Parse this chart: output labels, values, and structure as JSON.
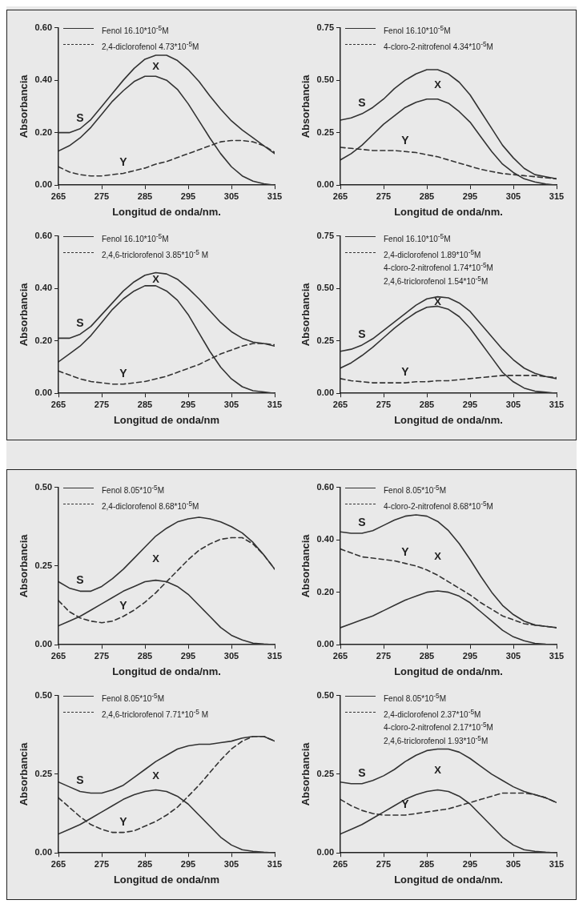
{
  "chart_data": [
    {
      "type": "line",
      "xlabel": "Longitud de onda/nm.",
      "ylabel": "Absorbancia",
      "legend": "top left",
      "marker": "none",
      "x": [
        265,
        267.5,
        270,
        272.5,
        275,
        277.5,
        280,
        282.5,
        285,
        287.5,
        290,
        292.5,
        295,
        297.5,
        300,
        302.5,
        305,
        307.5,
        310,
        312.5,
        315
      ],
      "xlim": [
        265,
        315
      ],
      "xticks": [
        265,
        275,
        285,
        295,
        305,
        315
      ],
      "ylim": [
        0,
        0.6
      ],
      "yticks": [
        {
          "value": 0,
          "label": "0.00"
        },
        {
          "value": 0.2,
          "label": "0.20"
        },
        {
          "value": 0.4,
          "label": "0.40"
        },
        {
          "value": 0.6,
          "label": "0.60"
        }
      ],
      "series": [
        {
          "color": "#333333",
          "values": [
            0.2,
            0.2,
            0.215,
            0.25,
            0.3,
            0.35,
            0.4,
            0.445,
            0.48,
            0.495,
            0.495,
            0.475,
            0.44,
            0.395,
            0.34,
            0.29,
            0.245,
            0.21,
            0.18,
            0.15,
            0.12
          ]
        },
        {
          "name": "Fenol 16.10*10$^{-5}$M",
          "color": "#333333",
          "values": [
            0.13,
            0.15,
            0.18,
            0.22,
            0.27,
            0.32,
            0.36,
            0.395,
            0.415,
            0.415,
            0.4,
            0.365,
            0.31,
            0.245,
            0.18,
            0.12,
            0.07,
            0.035,
            0.015,
            0.005,
            0
          ]
        },
        {
          "name": "2,4-diclorofenol 4.73*10$^{-5}$M",
          "color": "#333333",
          "line_style": "dashed",
          "values": [
            0.07,
            0.05,
            0.04,
            0.035,
            0.035,
            0.04,
            0.045,
            0.055,
            0.065,
            0.08,
            0.09,
            0.105,
            0.12,
            0.135,
            0.15,
            0.165,
            0.17,
            0.17,
            0.165,
            0.15,
            0.125
          ]
        }
      ],
      "annotations": [
        "S",
        "X",
        "Y"
      ]
    },
    {
      "type": "line",
      "xlabel": "Longitud de onda/nm.",
      "ylabel": "Absorbancia",
      "legend": "top left",
      "marker": "none",
      "x": [
        265,
        267.5,
        270,
        272.5,
        275,
        277.5,
        280,
        282.5,
        285,
        287.5,
        290,
        292.5,
        295,
        297.5,
        300,
        302.5,
        305,
        307.5,
        310,
        312.5,
        315
      ],
      "xlim": [
        265,
        315
      ],
      "xticks": [
        265,
        275,
        285,
        295,
        305,
        315
      ],
      "ylim": [
        0,
        0.75
      ],
      "yticks": [
        {
          "value": 0,
          "label": "0.00"
        },
        {
          "value": 0.25,
          "label": "0.25"
        },
        {
          "value": 0.5,
          "label": "0.50"
        },
        {
          "value": 0.75,
          "label": "0.75"
        }
      ],
      "series": [
        {
          "color": "#333333",
          "values": [
            0.31,
            0.32,
            0.34,
            0.37,
            0.41,
            0.46,
            0.5,
            0.53,
            0.55,
            0.55,
            0.53,
            0.49,
            0.43,
            0.35,
            0.27,
            0.19,
            0.13,
            0.08,
            0.05,
            0.04,
            0.03
          ]
        },
        {
          "name": "Fenol 16.10*10$^{-5}$M",
          "color": "#333333",
          "values": [
            0.12,
            0.15,
            0.19,
            0.24,
            0.29,
            0.33,
            0.37,
            0.395,
            0.41,
            0.41,
            0.39,
            0.35,
            0.3,
            0.23,
            0.16,
            0.1,
            0.06,
            0.03,
            0.015,
            0.005,
            0
          ]
        },
        {
          "name": "4-cloro-2-nitrofenol 4.34*10$^{-5}$M",
          "color": "#333333",
          "line_style": "dashed",
          "values": [
            0.18,
            0.175,
            0.17,
            0.165,
            0.165,
            0.165,
            0.16,
            0.155,
            0.145,
            0.135,
            0.12,
            0.105,
            0.09,
            0.075,
            0.065,
            0.055,
            0.05,
            0.045,
            0.04,
            0.035,
            0.03
          ]
        }
      ],
      "annotations": [
        "S",
        "X",
        "Y"
      ]
    },
    {
      "type": "line",
      "xlabel": "Longitud de onda/nm",
      "ylabel": "Absorbancia",
      "legend": "top left",
      "marker": "none",
      "x": [
        265,
        267.5,
        270,
        272.5,
        275,
        277.5,
        280,
        282.5,
        285,
        287.5,
        290,
        292.5,
        295,
        297.5,
        300,
        302.5,
        305,
        307.5,
        310,
        312.5,
        315
      ],
      "xlim": [
        265,
        315
      ],
      "xticks": [
        265,
        275,
        285,
        295,
        305,
        315
      ],
      "ylim": [
        0,
        0.6
      ],
      "yticks": [
        {
          "value": 0,
          "label": "0.00"
        },
        {
          "value": 0.2,
          "label": "0.20"
        },
        {
          "value": 0.4,
          "label": "0.40"
        },
        {
          "value": 0.6,
          "label": "0.60"
        }
      ],
      "series": [
        {
          "color": "#333333",
          "values": [
            0.21,
            0.21,
            0.225,
            0.255,
            0.3,
            0.345,
            0.39,
            0.425,
            0.45,
            0.46,
            0.455,
            0.435,
            0.4,
            0.36,
            0.315,
            0.27,
            0.235,
            0.21,
            0.195,
            0.19,
            0.18
          ]
        },
        {
          "name": "Fenol 16.10*10$^{-5}$M",
          "color": "#333333",
          "values": [
            0.12,
            0.15,
            0.18,
            0.22,
            0.27,
            0.32,
            0.36,
            0.39,
            0.41,
            0.41,
            0.39,
            0.355,
            0.3,
            0.23,
            0.16,
            0.1,
            0.055,
            0.025,
            0.01,
            0.005,
            0
          ]
        },
        {
          "name": "2,4,6-triclorofenol 3.85*10$^{-5}$ M",
          "color": "#333333",
          "line_style": "dashed",
          "values": [
            0.085,
            0.07,
            0.055,
            0.045,
            0.04,
            0.035,
            0.035,
            0.04,
            0.045,
            0.055,
            0.065,
            0.08,
            0.095,
            0.11,
            0.13,
            0.15,
            0.165,
            0.18,
            0.19,
            0.19,
            0.185
          ]
        }
      ],
      "annotations": [
        "S",
        "X",
        "Y"
      ]
    },
    {
      "type": "line",
      "xlabel": "Longitud de onda/nm.",
      "ylabel": "Absorbancia",
      "legend": "top left",
      "marker": "none",
      "x": [
        265,
        267.5,
        270,
        272.5,
        275,
        277.5,
        280,
        282.5,
        285,
        287.5,
        290,
        292.5,
        295,
        297.5,
        300,
        302.5,
        305,
        307.5,
        310,
        312.5,
        315
      ],
      "xlim": [
        265,
        315
      ],
      "xticks": [
        265,
        275,
        285,
        295,
        305,
        315
      ],
      "ylim": [
        0,
        0.75
      ],
      "yticks": [
        {
          "value": 0,
          "label": "0.00"
        },
        {
          "value": 0.25,
          "label": "0.25"
        },
        {
          "value": 0.5,
          "label": "0.50"
        },
        {
          "value": 0.75,
          "label": "0.75"
        }
      ],
      "series": [
        {
          "color": "#333333",
          "values": [
            0.2,
            0.21,
            0.23,
            0.26,
            0.3,
            0.34,
            0.38,
            0.42,
            0.45,
            0.46,
            0.455,
            0.43,
            0.39,
            0.33,
            0.27,
            0.21,
            0.16,
            0.12,
            0.095,
            0.08,
            0.07
          ]
        },
        {
          "name": "Fenol 16.10*10$^{-5}$M",
          "color": "#333333",
          "values": [
            0.12,
            0.145,
            0.18,
            0.22,
            0.265,
            0.31,
            0.35,
            0.385,
            0.41,
            0.415,
            0.4,
            0.365,
            0.31,
            0.24,
            0.17,
            0.1,
            0.055,
            0.025,
            0.01,
            0.005,
            0
          ]
        },
        {
          "name": "2,4-diclorofenol 1.89*10$^{-5}$M\n4-cloro-2-nitrofenol 1.74*10$^{-5}$M\n2,4,6-triclorofenol 1.54*10$^{-5}$M",
          "color": "#333333",
          "line_style": "dashed",
          "values": [
            0.07,
            0.06,
            0.055,
            0.05,
            0.05,
            0.05,
            0.05,
            0.055,
            0.055,
            0.06,
            0.06,
            0.065,
            0.07,
            0.075,
            0.08,
            0.085,
            0.085,
            0.085,
            0.085,
            0.08,
            0.075
          ]
        }
      ],
      "annotations": [
        "S",
        "X",
        "Y"
      ]
    },
    {
      "type": "line",
      "xlabel": "Longitud de onda/nm.",
      "ylabel": "Absorbancia",
      "legend": "top left",
      "marker": "none",
      "x": [
        265,
        267.5,
        270,
        272.5,
        275,
        277.5,
        280,
        282.5,
        285,
        287.5,
        290,
        292.5,
        295,
        297.5,
        300,
        302.5,
        305,
        307.5,
        310,
        312.5,
        315
      ],
      "xlim": [
        265,
        315
      ],
      "xticks": [
        265,
        275,
        285,
        295,
        305,
        315
      ],
      "ylim": [
        0,
        0.5
      ],
      "yticks": [
        {
          "value": 0,
          "label": "0.00"
        },
        {
          "value": 0.25,
          "label": "0.25"
        },
        {
          "value": 0.5,
          "label": "0.50"
        }
      ],
      "series": [
        {
          "color": "#333333",
          "values": [
            0.2,
            0.18,
            0.17,
            0.17,
            0.185,
            0.21,
            0.24,
            0.275,
            0.31,
            0.345,
            0.37,
            0.39,
            0.4,
            0.405,
            0.4,
            0.39,
            0.375,
            0.355,
            0.325,
            0.285,
            0.24
          ]
        },
        {
          "name": "Fenol 8.05*10$^{-5}$M",
          "color": "#333333",
          "values": [
            0.06,
            0.075,
            0.09,
            0.11,
            0.13,
            0.15,
            0.17,
            0.185,
            0.2,
            0.205,
            0.2,
            0.185,
            0.16,
            0.125,
            0.09,
            0.055,
            0.03,
            0.015,
            0.005,
            0.002,
            0
          ]
        },
        {
          "name": "2,4-diclorofenol 8.68*10$^{-5}$M",
          "color": "#333333",
          "line_style": "dashed",
          "values": [
            0.14,
            0.105,
            0.085,
            0.075,
            0.07,
            0.075,
            0.09,
            0.11,
            0.135,
            0.165,
            0.2,
            0.235,
            0.27,
            0.3,
            0.32,
            0.335,
            0.34,
            0.34,
            0.32,
            0.285,
            0.24
          ]
        }
      ],
      "annotations": [
        "S",
        "X",
        "Y"
      ]
    },
    {
      "type": "line",
      "xlabel": "Longitud de onda/nm.",
      "ylabel": "Absorbancia",
      "legend": "top left",
      "marker": "none",
      "x": [
        265,
        267.5,
        270,
        272.5,
        275,
        277.5,
        280,
        282.5,
        285,
        287.5,
        290,
        292.5,
        295,
        297.5,
        300,
        302.5,
        305,
        307.5,
        310,
        312.5,
        315
      ],
      "xlim": [
        265,
        315
      ],
      "xticks": [
        265,
        275,
        285,
        295,
        305,
        315
      ],
      "ylim": [
        0,
        0.6
      ],
      "yticks": [
        {
          "value": 0,
          "label": "0.00"
        },
        {
          "value": 0.2,
          "label": "0.20"
        },
        {
          "value": 0.4,
          "label": "0.40"
        },
        {
          "value": 0.6,
          "label": "0.60"
        }
      ],
      "series": [
        {
          "color": "#333333",
          "values": [
            0.43,
            0.425,
            0.425,
            0.435,
            0.455,
            0.475,
            0.49,
            0.495,
            0.49,
            0.47,
            0.435,
            0.385,
            0.325,
            0.26,
            0.2,
            0.15,
            0.115,
            0.09,
            0.075,
            0.07,
            0.065
          ]
        },
        {
          "name": "Fenol 8.05*10$^{-5}$M",
          "color": "#333333",
          "values": [
            0.065,
            0.08,
            0.095,
            0.11,
            0.13,
            0.15,
            0.17,
            0.185,
            0.2,
            0.205,
            0.2,
            0.185,
            0.16,
            0.125,
            0.09,
            0.055,
            0.03,
            0.015,
            0.005,
            0.002,
            0
          ]
        },
        {
          "name": "4-cloro-2-nitrofenol 8.68*10$^{-5}$M",
          "color": "#333333",
          "line_style": "dashed",
          "values": [
            0.365,
            0.35,
            0.335,
            0.33,
            0.325,
            0.32,
            0.31,
            0.3,
            0.285,
            0.265,
            0.24,
            0.215,
            0.19,
            0.16,
            0.135,
            0.11,
            0.095,
            0.08,
            0.075,
            0.07,
            0.065
          ]
        }
      ],
      "annotations": [
        "S",
        "X",
        "Y"
      ]
    },
    {
      "type": "line",
      "xlabel": "Longitud de onda/nm",
      "ylabel": "Absorbancia",
      "legend": "top left",
      "marker": "none",
      "x": [
        265,
        267.5,
        270,
        272.5,
        275,
        277.5,
        280,
        282.5,
        285,
        287.5,
        290,
        292.5,
        295,
        297.5,
        300,
        302.5,
        305,
        307.5,
        310,
        312.5,
        315
      ],
      "xlim": [
        265,
        315
      ],
      "xticks": [
        265,
        275,
        285,
        295,
        305,
        315
      ],
      "ylim": [
        0,
        0.5
      ],
      "yticks": [
        {
          "value": 0,
          "label": "0.00"
        },
        {
          "value": 0.25,
          "label": "0.25"
        },
        {
          "value": 0.5,
          "label": "0.50"
        }
      ],
      "series": [
        {
          "color": "#333333",
          "values": [
            0.225,
            0.21,
            0.195,
            0.19,
            0.19,
            0.2,
            0.215,
            0.24,
            0.265,
            0.29,
            0.31,
            0.33,
            0.34,
            0.345,
            0.345,
            0.35,
            0.355,
            0.365,
            0.37,
            0.37,
            0.355
          ]
        },
        {
          "name": "Fenol 8.05*10$^{-5}$M",
          "color": "#333333",
          "values": [
            0.06,
            0.075,
            0.09,
            0.11,
            0.13,
            0.15,
            0.17,
            0.185,
            0.195,
            0.2,
            0.195,
            0.18,
            0.155,
            0.12,
            0.085,
            0.05,
            0.025,
            0.01,
            0.005,
            0.002,
            0
          ]
        },
        {
          "name": "2,4,6-triclorofenol 7.71*10$^{-5}$ M",
          "color": "#333333",
          "line_style": "dashed",
          "values": [
            0.175,
            0.145,
            0.115,
            0.09,
            0.075,
            0.065,
            0.065,
            0.07,
            0.085,
            0.1,
            0.12,
            0.145,
            0.18,
            0.215,
            0.255,
            0.295,
            0.33,
            0.355,
            0.37,
            0.37,
            0.355
          ]
        }
      ],
      "annotations": [
        "S",
        "X",
        "Y"
      ]
    },
    {
      "type": "line",
      "xlabel": "Longitud de onda/nm.",
      "ylabel": "Absorbancia",
      "legend": "top left",
      "marker": "none",
      "x": [
        265,
        267.5,
        270,
        272.5,
        275,
        277.5,
        280,
        282.5,
        285,
        287.5,
        290,
        292.5,
        295,
        297.5,
        300,
        302.5,
        305,
        307.5,
        310,
        312.5,
        315
      ],
      "xlim": [
        265,
        315
      ],
      "xticks": [
        265,
        275,
        285,
        295,
        305,
        315
      ],
      "ylim": [
        0,
        0.5
      ],
      "yticks": [
        {
          "value": 0,
          "label": "0.00"
        },
        {
          "value": 0.25,
          "label": "0.25"
        },
        {
          "value": 0.5,
          "label": "0.50"
        }
      ],
      "series": [
        {
          "color": "#333333",
          "values": [
            0.225,
            0.22,
            0.22,
            0.23,
            0.245,
            0.265,
            0.29,
            0.31,
            0.325,
            0.33,
            0.33,
            0.32,
            0.3,
            0.275,
            0.25,
            0.23,
            0.21,
            0.195,
            0.185,
            0.175,
            0.16
          ]
        },
        {
          "name": "Fenol 8.05*10$^{-5}$M",
          "color": "#333333",
          "values": [
            0.06,
            0.075,
            0.09,
            0.11,
            0.13,
            0.15,
            0.17,
            0.185,
            0.195,
            0.2,
            0.195,
            0.18,
            0.155,
            0.12,
            0.085,
            0.05,
            0.025,
            0.01,
            0.005,
            0.002,
            0
          ]
        },
        {
          "name": "2,4-diclorofenol 2.37*10$^{-5}$M\n4-cloro-2-nitrofenol 2.17*10$^{-5}$M\n2,4,6-triclorofenol 1.93*10$^{-5}$M",
          "color": "#333333",
          "line_style": "dashed",
          "values": [
            0.17,
            0.15,
            0.135,
            0.125,
            0.12,
            0.12,
            0.12,
            0.125,
            0.13,
            0.135,
            0.14,
            0.15,
            0.16,
            0.17,
            0.18,
            0.19,
            0.19,
            0.19,
            0.185,
            0.175,
            0.16
          ]
        }
      ],
      "annotations": [
        "S",
        "X",
        "Y"
      ]
    }
  ]
}
